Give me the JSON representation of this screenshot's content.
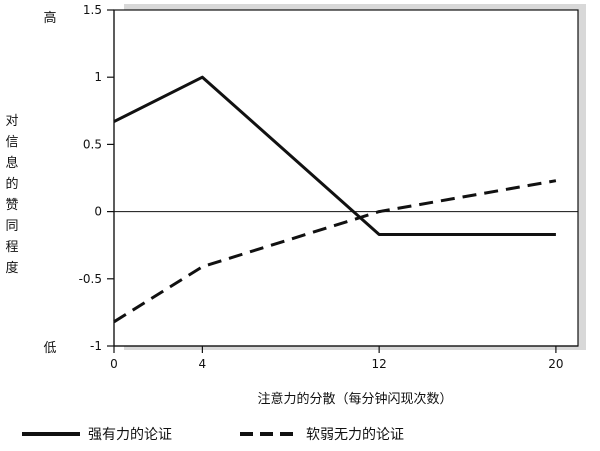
{
  "chart_data": {
    "type": "line",
    "x": [
      0,
      4,
      12,
      20
    ],
    "xticks": [
      "0",
      "4",
      "12",
      "20"
    ],
    "xlim": [
      0,
      21
    ],
    "ylim": [
      -1,
      1.5
    ],
    "yticks": [
      "1.5",
      "1",
      "0.5",
      "0",
      "-0.5",
      "-1"
    ],
    "xlabel": "注意力的分散（每分钟闪现次数）",
    "ylabel": "对信息的赞同程度",
    "ylabel_chars": [
      "对",
      "信",
      "息",
      "的",
      "赞",
      "同",
      "程",
      "度"
    ],
    "ymarker_high": "高",
    "ymarker_low": "低",
    "reference_line_y": 0,
    "grid": false,
    "legend_position": "bottom",
    "series": [
      {
        "name": "强有力的论证",
        "style": "solid",
        "color": "#111111",
        "values": [
          0.67,
          1.0,
          -0.17,
          -0.17
        ]
      },
      {
        "name": "软弱无力的论证",
        "style": "dashed",
        "color": "#111111",
        "values": [
          -0.82,
          -0.41,
          0.0,
          0.23
        ]
      }
    ]
  }
}
